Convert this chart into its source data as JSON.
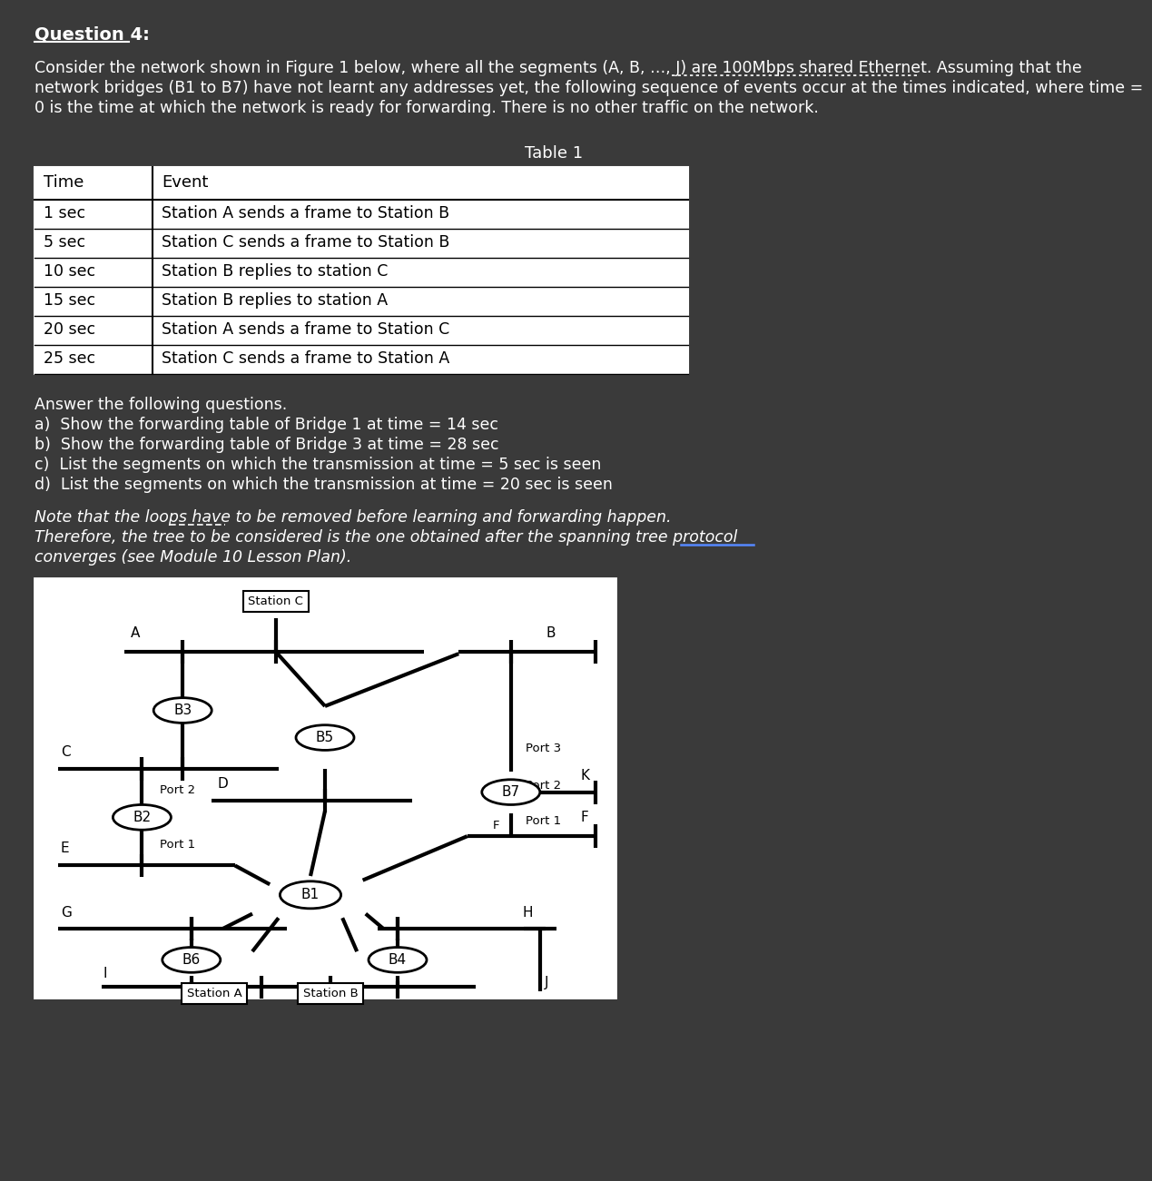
{
  "bg_color": "#3a3a3a",
  "text_color": "#ffffff",
  "diagram_bg": "#ffffff",
  "title": "Question 4:",
  "para_line1": "Consider the network shown in Figure 1 below, where all the segments (A, B, …, J) are 100Mbps shared Ethernet. Assuming that the",
  "para_line2": "network bridges (B1 to B7) have not learnt any addresses yet, the following sequence of events occur at the times indicated, where time =",
  "para_line3": "0 is the time at which the network is ready for forwarding. There is no other traffic on the network.",
  "table_title": "Table 1",
  "table_headers": [
    "Time",
    "Event"
  ],
  "table_rows": [
    [
      "1 sec",
      "Station A sends a frame to Station B"
    ],
    [
      "5 sec",
      "Station C sends a frame to Station B"
    ],
    [
      "10 sec",
      "Station B replies to station C"
    ],
    [
      "15 sec",
      "Station B replies to station A"
    ],
    [
      "20 sec",
      "Station A sends a frame to Station C"
    ],
    [
      "25 sec",
      "Station C sends a frame to Station A"
    ]
  ],
  "questions_header": "Answer the following questions.",
  "questions": [
    "a)  Show the forwarding table of Bridge 1 at time = 14 sec",
    "b)  Show the forwarding table of Bridge 3 at time = 28 sec",
    "c)  List the segments on which the transmission at time = 5 sec is seen",
    "d)  List the segments on which the transmission at time = 20 sec is seen"
  ],
  "note_line1": "Note that the loops have to be removed before learning and forwarding happen.",
  "note_line2": "Therefore, the tree to be considered is the one obtained after the spanning tree protocol",
  "note_line3": "converges (see Module 10 Lesson Plan).",
  "have_to_underline": [
    177,
    238
  ],
  "protocol_underline": [
    740,
    820
  ],
  "dotted_underline": [
    730,
    1000
  ]
}
